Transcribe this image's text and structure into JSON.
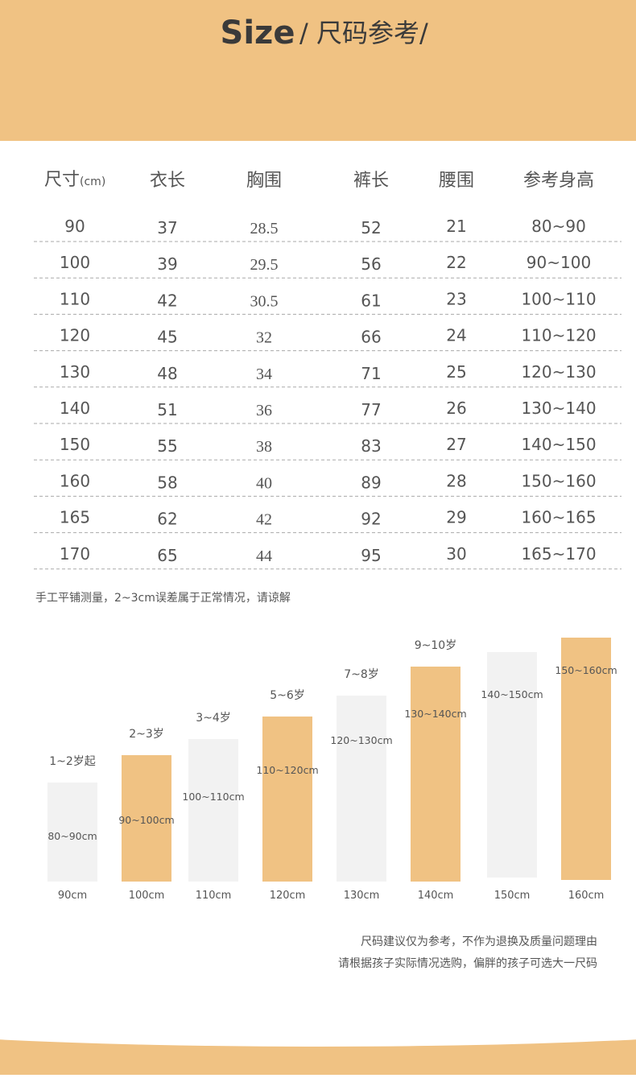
{
  "header": {
    "title_en": "Size",
    "title_cn": "/ 尺码参考/"
  },
  "table": {
    "columns": [
      {
        "label": "尺寸",
        "unit": "(cm)"
      },
      {
        "label": "衣长"
      },
      {
        "label": "胸围"
      },
      {
        "label": "裤长"
      },
      {
        "label": "腰围"
      },
      {
        "label": "参考身高"
      }
    ],
    "rows": [
      [
        "90",
        "37",
        "28.5",
        "52",
        "21",
        "80~90"
      ],
      [
        "100",
        "39",
        "29.5",
        "56",
        "22",
        "90~100"
      ],
      [
        "110",
        "42",
        "30.5",
        "61",
        "23",
        "100~110"
      ],
      [
        "120",
        "45",
        "32",
        "66",
        "24",
        "110~120"
      ],
      [
        "130",
        "48",
        "34",
        "71",
        "25",
        "120~130"
      ],
      [
        "140",
        "51",
        "36",
        "77",
        "26",
        "130~140"
      ],
      [
        "150",
        "55",
        "38",
        "83",
        "27",
        "140~150"
      ],
      [
        "160",
        "58",
        "40",
        "89",
        "28",
        "150~160"
      ],
      [
        "165",
        "62",
        "42",
        "92",
        "29",
        "160~165"
      ],
      [
        "170",
        "65",
        "44",
        "95",
        "30",
        "165~170"
      ]
    ]
  },
  "note": "手工平铺测量，2~3cm误差属于正常情况，请谅解",
  "height_chart": {
    "bars": [
      {
        "age": "1~2岁起",
        "range": "80~90cm",
        "size": "90cm"
      },
      {
        "age": "2~3岁",
        "range": "90~100cm",
        "size": "100cm"
      },
      {
        "age": "3~4岁",
        "range": "100~110cm",
        "size": "110cm"
      },
      {
        "age": "5~6岁",
        "range": "110~120cm",
        "size": "120cm"
      },
      {
        "age": "7~8岁",
        "range": "120~130cm",
        "size": "130cm"
      },
      {
        "age": "9~10岁",
        "range": "130~140cm",
        "size": "140cm"
      },
      {
        "range": "140~150cm",
        "size": "150cm"
      },
      {
        "range": "150~160cm",
        "size": "160cm"
      }
    ]
  },
  "footer": {
    "lines": [
      "尺码建议仅为参考，不作为退换及质量问题理由",
      "请根据孩子实际情况选购，偏胖的孩子可选大一尺码"
    ]
  }
}
